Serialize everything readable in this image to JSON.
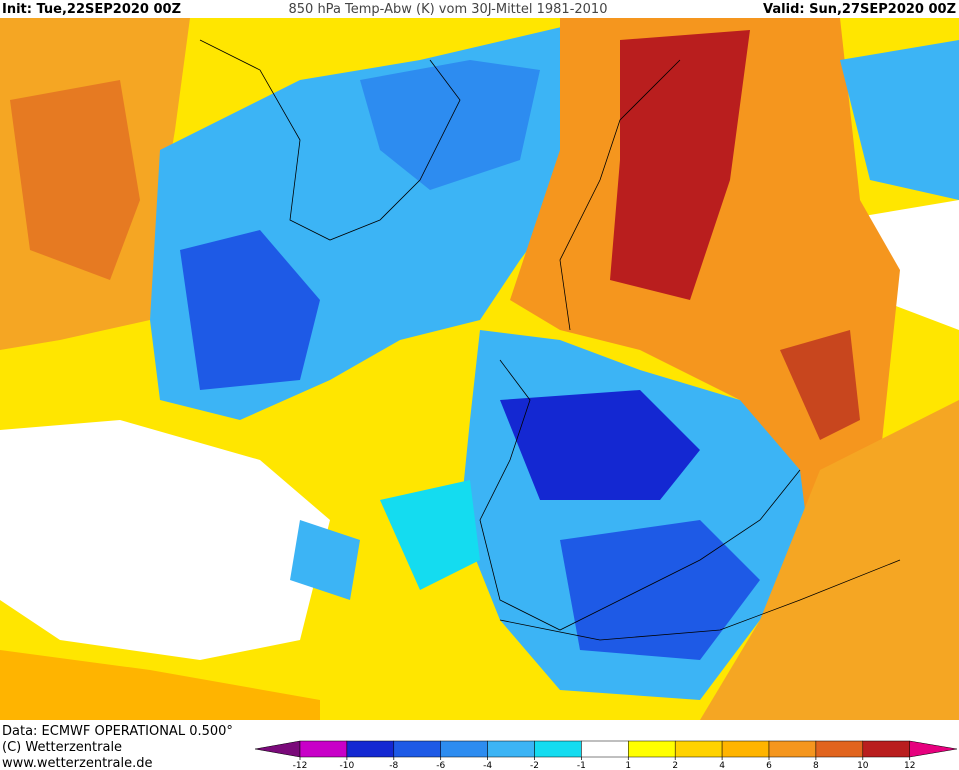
{
  "header": {
    "init": "Init: Tue,22SEP2020 00Z",
    "title": "850 hPa Temp-Abw (K) vom 30J-Mittel 1981-2010",
    "valid": "Valid: Sun,27SEP2020 00Z"
  },
  "footer": {
    "data": "Data: ECMWF OPERATIONAL 0.500°",
    "copyright": "(C) Wetterzentrale",
    "url": "www.wetterzentrale.de"
  },
  "colorbar": {
    "ticks": [
      -12,
      -10,
      -8,
      -6,
      -4,
      -2,
      -1,
      1,
      2,
      4,
      6,
      8,
      10,
      12
    ],
    "colors": [
      "#7a0a7a",
      "#c800c8",
      "#1428d2",
      "#1e5ae6",
      "#2d8cf0",
      "#3cb4f5",
      "#14dcf0",
      "#ffffff",
      "#ffff00",
      "#ffd200",
      "#ffb400",
      "#f5961e",
      "#e1641e",
      "#b91e1e",
      "#e6007e"
    ]
  }
}
